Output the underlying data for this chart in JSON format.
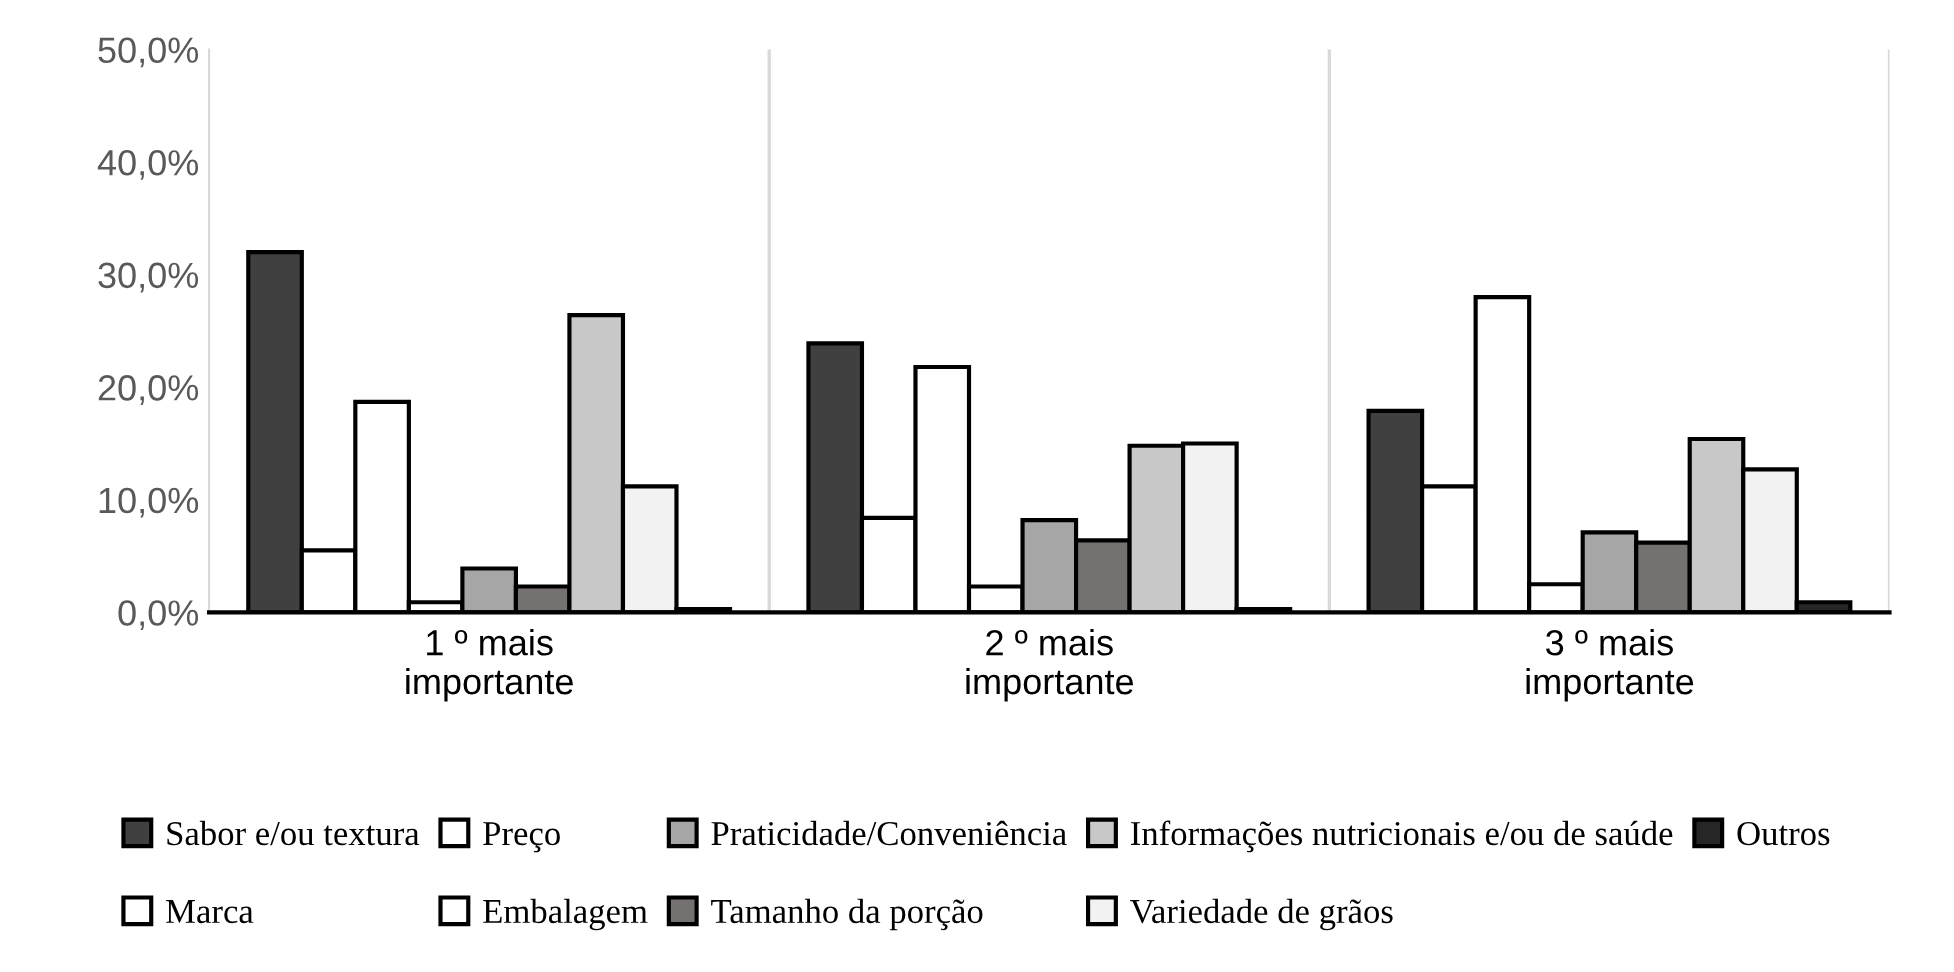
{
  "chart_data": {
    "type": "bar",
    "categories": [
      "1 º mais importante",
      "2 º mais importante",
      "3 º mais importante"
    ],
    "series": [
      {
        "name": "Sabor e/ou textura",
        "color": "#404040",
        "values": [
          32.0,
          23.9,
          17.9
        ]
      },
      {
        "name": "Marca",
        "color": "#ffffff",
        "values": [
          5.5,
          8.4,
          11.2
        ]
      },
      {
        "name": "Preço",
        "color": "#ffffff",
        "values": [
          18.7,
          21.8,
          28.0
        ]
      },
      {
        "name": "Embalagem",
        "color": "#ffffff",
        "values": [
          0.9,
          2.3,
          2.5
        ]
      },
      {
        "name": "Praticidade/Conveniência",
        "color": "#a6a6a6",
        "values": [
          3.9,
          8.2,
          7.1
        ]
      },
      {
        "name": "Tamanho da porção",
        "color": "#767171",
        "values": [
          2.3,
          6.4,
          6.2
        ]
      },
      {
        "name": "Informações nutricionais e/ou de saúde",
        "color": "#c8c8c8",
        "values": [
          26.4,
          14.8,
          15.4
        ]
      },
      {
        "name": "Variedade de grãos",
        "color": "#f2f2f2",
        "values": [
          11.2,
          15.0,
          12.7
        ]
      },
      {
        "name": "Outros",
        "color": "#262626",
        "values": [
          0.3,
          0.3,
          0.9
        ]
      }
    ],
    "ylim": [
      0,
      50
    ],
    "yticks": [
      {
        "value": 0,
        "label": "0,0%"
      },
      {
        "value": 10,
        "label": "10,0%"
      },
      {
        "value": 20,
        "label": "20,0%"
      },
      {
        "value": 30,
        "label": "30,0%"
      },
      {
        "value": 40,
        "label": "40,0%"
      },
      {
        "value": 50,
        "label": "50,0%"
      }
    ],
    "grid": "x",
    "legend": "bottom"
  }
}
